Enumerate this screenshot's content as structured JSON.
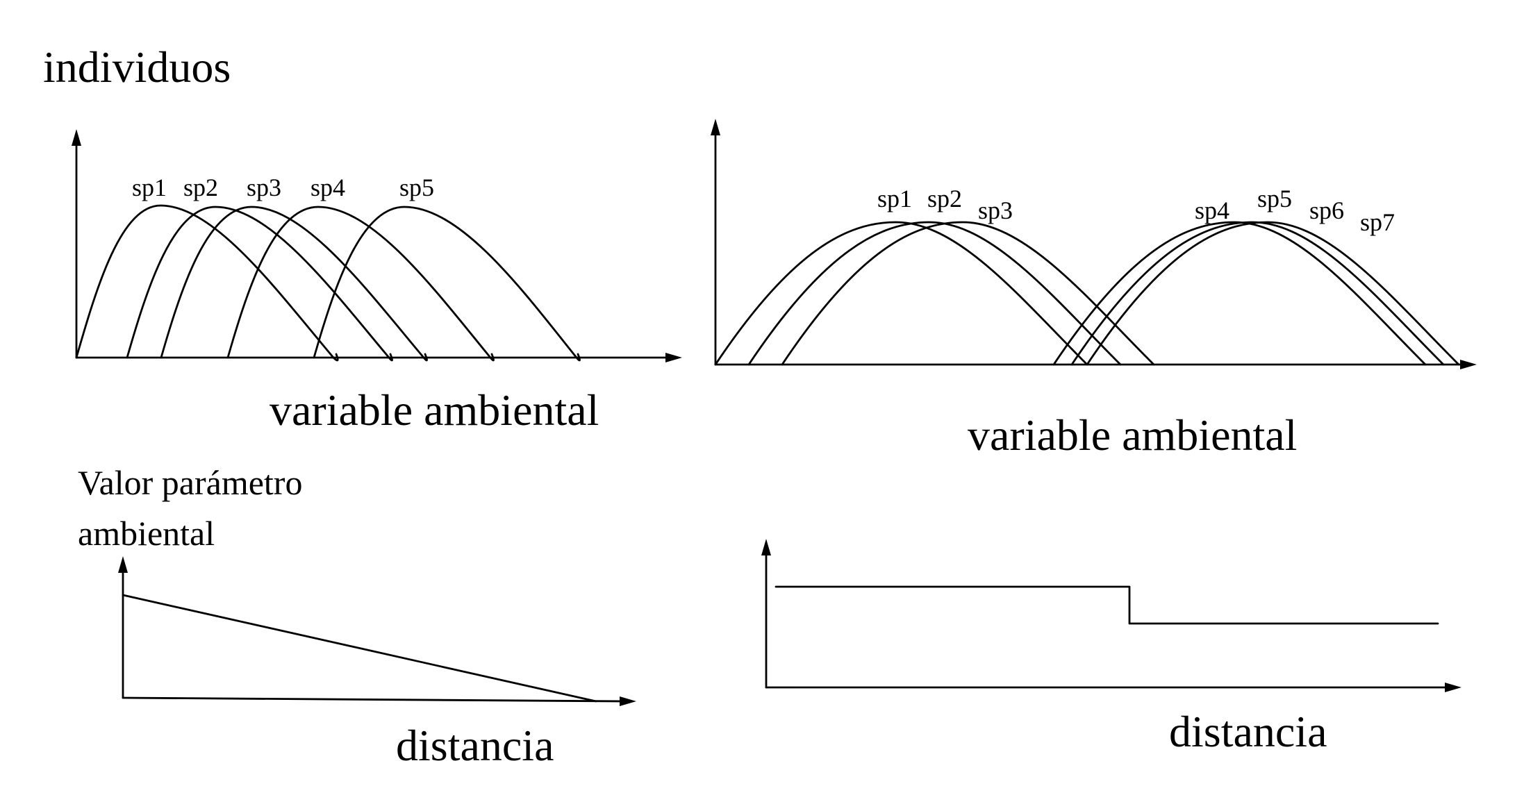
{
  "top_left": {
    "ylabel": "individuos",
    "xlabel": "variable ambiental",
    "species": [
      "sp1",
      "sp2",
      "sp3",
      "sp4",
      "sp5"
    ]
  },
  "top_right": {
    "xlabel": "variable ambiental",
    "species": [
      "sp1",
      "sp2",
      "sp3",
      "sp4",
      "sp5",
      "sp6",
      "sp7"
    ]
  },
  "bottom_left": {
    "ylabel_line1": "Valor parámetro",
    "ylabel_line2": "ambiental",
    "xlabel": "distancia",
    "profile": "gradual decline"
  },
  "bottom_right": {
    "xlabel": "distancia",
    "profile": "abrupt step"
  }
}
